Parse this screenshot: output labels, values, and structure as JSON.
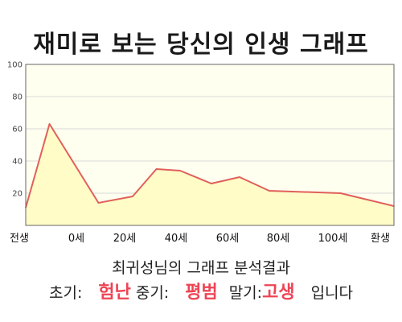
{
  "chart_data": {
    "type": "area",
    "title": "재미로 보는 당신의 인생 그래프",
    "xlabel": "",
    "ylabel": "",
    "x": [
      "전생",
      "0세",
      "20세",
      "40세",
      "60세",
      "80세",
      "100세",
      "환생"
    ],
    "ylim": [
      0,
      100
    ],
    "yticks": [
      20,
      40,
      60,
      80,
      100
    ],
    "grid": true,
    "series": [
      {
        "points": [
          {
            "x": -8,
            "y": 11
          },
          {
            "x": 0,
            "y": 63
          },
          {
            "x": 16.5,
            "y": 14
          },
          {
            "x": 28,
            "y": 18
          },
          {
            "x": 36,
            "y": 35
          },
          {
            "x": 44,
            "y": 34
          },
          {
            "x": 54.5,
            "y": 26
          },
          {
            "x": 64,
            "y": 30
          },
          {
            "x": 74,
            "y": 21.5
          },
          {
            "x": 98,
            "y": 20
          },
          {
            "x": 116,
            "y": 12
          }
        ]
      }
    ],
    "colors": {
      "line": "#e0605a",
      "fill": "#fffcc8",
      "plot_bg": "#fffff0",
      "grid": "#d8d8d8",
      "value_highlight": "#ee4455"
    }
  },
  "result": {
    "heading": "최귀성님의 그래프 분석결과",
    "early_label": "초기:",
    "early_value": "험난",
    "mid_label": "중기:",
    "mid_value": "평범",
    "late_label": "말기:",
    "late_value": "고생",
    "suffix": "입니다"
  }
}
